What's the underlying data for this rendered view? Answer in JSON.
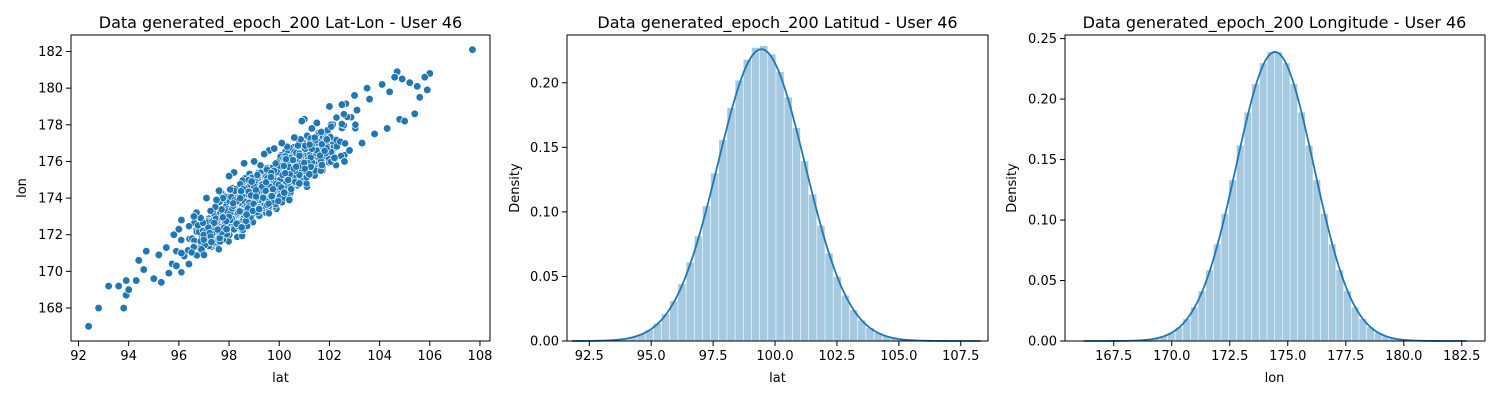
{
  "chart_data": [
    {
      "type": "scatter",
      "title": "Data generated_epoch_200 Lat-Lon - User 46",
      "xlabel": "lat",
      "ylabel": "lon",
      "xlim": [
        91.7,
        108.4
      ],
      "ylim": [
        166.2,
        182.9
      ],
      "xticks": [
        92,
        94,
        96,
        98,
        100,
        102,
        104,
        106,
        108
      ],
      "yticks": [
        168,
        170,
        172,
        174,
        176,
        178,
        180,
        182
      ],
      "color": "#1f77b4",
      "points": [
        [
          92.4,
          167.0
        ],
        [
          92.8,
          168.0
        ],
        [
          93.2,
          169.2
        ],
        [
          93.6,
          169.2
        ],
        [
          93.8,
          168.0
        ],
        [
          93.9,
          168.7
        ],
        [
          94.0,
          169.0
        ],
        [
          93.9,
          169.5
        ],
        [
          107.7,
          182.1
        ],
        [
          106.0,
          180.8
        ],
        [
          105.8,
          180.6
        ],
        [
          104.7,
          180.9
        ],
        [
          94.4,
          170.6
        ],
        [
          94.6,
          170.1
        ],
        [
          95.0,
          169.6
        ],
        [
          95.2,
          170.9
        ],
        [
          95.5,
          171.3
        ],
        [
          95.6,
          169.9
        ],
        [
          95.8,
          172.0
        ],
        [
          96.1,
          171.0
        ],
        [
          96.1,
          172.8
        ],
        [
          96.4,
          170.4
        ],
        [
          96.7,
          173.2
        ],
        [
          96.9,
          171.2
        ],
        [
          97.1,
          174.0
        ],
        [
          97.3,
          171.6
        ],
        [
          97.6,
          174.4
        ],
        [
          97.9,
          172.3
        ],
        [
          98.2,
          175.4
        ],
        [
          98.3,
          172.6
        ],
        [
          98.6,
          175.9
        ],
        [
          98.7,
          173.1
        ],
        [
          99.0,
          176.0
        ],
        [
          99.2,
          173.4
        ],
        [
          99.6,
          176.6
        ],
        [
          99.7,
          174.1
        ],
        [
          100.1,
          177.0
        ],
        [
          100.2,
          174.3
        ],
        [
          100.6,
          177.3
        ],
        [
          100.8,
          174.8
        ],
        [
          101.0,
          178.3
        ],
        [
          101.2,
          175.3
        ],
        [
          101.5,
          178.1
        ],
        [
          101.7,
          175.8
        ],
        [
          102.0,
          179.0
        ],
        [
          102.2,
          176.2
        ],
        [
          102.5,
          179.1
        ],
        [
          102.8,
          176.6
        ],
        [
          103.0,
          179.6
        ],
        [
          103.3,
          177.0
        ],
        [
          103.5,
          180.0
        ],
        [
          103.8,
          177.5
        ],
        [
          104.1,
          180.2
        ],
        [
          104.3,
          177.8
        ],
        [
          104.6,
          180.6
        ],
        [
          104.8,
          178.3
        ],
        [
          105.2,
          180.3
        ],
        [
          105.4,
          178.6
        ],
        [
          105.6,
          179.5
        ],
        [
          105.9,
          179.9
        ],
        [
          94.3,
          169.5
        ],
        [
          94.7,
          171.1
        ],
        [
          95.3,
          169.4
        ],
        [
          96.6,
          173.0
        ],
        [
          97.0,
          170.9
        ],
        [
          98.0,
          175.2
        ],
        [
          98.5,
          172.4
        ],
        [
          99.4,
          176.4
        ],
        [
          100.4,
          173.9
        ],
        [
          101.3,
          177.8
        ],
        [
          102.6,
          176.0
        ],
        [
          103.6,
          179.4
        ],
        [
          104.4,
          179.8
        ],
        [
          105.0,
          178.2
        ],
        [
          105.5,
          180.1
        ],
        [
          100.9,
          178.2
        ],
        [
          99.8,
          176.7
        ],
        [
          96.0,
          172.3
        ],
        [
          97.5,
          173.9
        ],
        [
          98.9,
          174.9
        ],
        [
          101.9,
          177.2
        ],
        [
          103.1,
          178.8
        ],
        [
          104.9,
          180.5
        ],
        [
          95.9,
          170.3
        ]
      ]
    },
    {
      "type": "histogram",
      "title": "Data generated_epoch_200 Latitud - User 46",
      "xlabel": "lat",
      "ylabel": "Density",
      "xlim": [
        91.6,
        108.6
      ],
      "ylim": [
        0,
        0.237
      ],
      "xticks": [
        92.5,
        95.0,
        97.5,
        100.0,
        102.5,
        105.0,
        107.5
      ],
      "yticks": [
        0.0,
        0.05,
        0.1,
        0.15,
        0.2
      ],
      "tick_labels_x": [
        "92.5",
        "95.0",
        "97.5",
        "100.0",
        "102.5",
        "105.0",
        "107.5"
      ],
      "tick_labels_y": [
        "0.00",
        "0.05",
        "0.10",
        "0.15",
        "0.20"
      ],
      "bar_color": "#1f77b4",
      "kde": {
        "range": [
          91.8,
          108.3
        ],
        "mean": 99.45,
        "sd": 1.76,
        "peak": 0.226
      },
      "bins": {
        "range": [
          91.8,
          108.3
        ],
        "count": 50,
        "mean": 99.45,
        "sd": 1.76,
        "peak": 0.229
      }
    },
    {
      "type": "histogram",
      "title": "Data generated_epoch_200 Longitude - User 46",
      "xlabel": "lon",
      "ylabel": "Density",
      "xlim": [
        165.4,
        183.5
      ],
      "ylim": [
        0,
        0.253
      ],
      "xticks": [
        167.5,
        170.0,
        172.5,
        175.0,
        177.5,
        180.0,
        182.5
      ],
      "yticks": [
        0.0,
        0.05,
        0.1,
        0.15,
        0.2,
        0.25
      ],
      "tick_labels_x": [
        "167.5",
        "170.0",
        "172.5",
        "175.0",
        "177.5",
        "180.0",
        "182.5"
      ],
      "tick_labels_y": [
        "0.00",
        "0.05",
        "0.10",
        "0.15",
        "0.20",
        "0.25"
      ],
      "bar_color": "#1f77b4",
      "kde": {
        "range": [
          166.2,
          182.7
        ],
        "mean": 174.45,
        "sd": 1.67,
        "peak": 0.239
      },
      "bins": {
        "range": [
          166.2,
          182.7
        ],
        "count": 50,
        "mean": 174.45,
        "sd": 1.67,
        "peak": 0.24
      }
    }
  ]
}
